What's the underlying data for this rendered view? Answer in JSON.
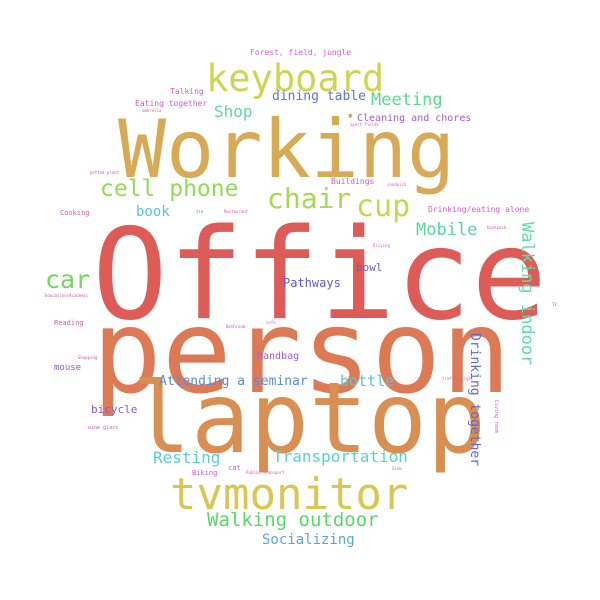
{
  "words": {
    "office": {
      "text": "Office",
      "color": "#dd5c57"
    },
    "person": {
      "text": "person",
      "color": "#dd7a55"
    },
    "laptop": {
      "text": "laptop",
      "color": "#d98f52"
    },
    "working": {
      "text": "Working",
      "color": "#d8aa55"
    },
    "keyboard": {
      "text": "keyboard",
      "color": "#cfd552"
    },
    "tvmonitor": {
      "text": "tvmonitor",
      "color": "#d8c752"
    },
    "cell_phone": {
      "text": "cell phone",
      "color": "#92dc55"
    },
    "chair": {
      "text": "chair",
      "color": "#a7d856"
    },
    "cup": {
      "text": "cup",
      "color": "#bfdb54"
    },
    "car": {
      "text": "car",
      "color": "#73d859"
    },
    "walking_outdoor": {
      "text": "Walking outdoor",
      "color": "#58d86a"
    },
    "meeting": {
      "text": "Meeting",
      "color": "#5dd98d"
    },
    "shop": {
      "text": "Shop",
      "color": "#5fd79a"
    },
    "dining_table": {
      "text": "dining table",
      "color": "#5a74d4"
    },
    "mobile": {
      "text": "Mobile",
      "color": "#58d79a"
    },
    "walking_indoor": {
      "text": "Walking indoor",
      "color": "#64dbaa"
    },
    "transportation": {
      "text": "Transportation",
      "color": "#54d6c8"
    },
    "resting": {
      "text": "Resting",
      "color": "#55d1d6"
    },
    "attending": {
      "text": "Attending a seminar",
      "color": "#5a8bd9"
    },
    "bottle": {
      "text": "bottle",
      "color": "#59c5d8"
    },
    "socializing": {
      "text": "Socializing",
      "color": "#5aa5d8"
    },
    "book": {
      "text": "book",
      "color": "#56c0d6"
    },
    "drinking_together": {
      "text": "Drinking together",
      "color": "#5b68d6"
    },
    "pathways": {
      "text": "Pathways",
      "color": "#6158d6"
    },
    "bowl": {
      "text": "bowl",
      "color": "#6c5bd6"
    },
    "bicycle": {
      "text": "bicycle",
      "color": "#8a59d6"
    },
    "handbag": {
      "text": "handbag",
      "color": "#a25bd8"
    },
    "mouse": {
      "text": "mouse",
      "color": "#8b5ad6"
    },
    "cleaning": {
      "text": "Cleaning and chores",
      "color": "#a55ad8"
    },
    "forest": {
      "text": "Forest, field, jungle",
      "color": "#d45fd6"
    },
    "talking": {
      "text": "Talking",
      "color": "#c35ad6"
    },
    "eating_together": {
      "text": "Eating together",
      "color": "#d85ac9"
    },
    "buildings": {
      "text": "Buildings",
      "color": "#c75ad8"
    },
    "drinking_alone": {
      "text": "Drinking/eating alone",
      "color": "#d85acb"
    },
    "cooking": {
      "text": "Cooking",
      "color": "#d85ab0"
    },
    "reading": {
      "text": "Reading",
      "color": "#d75a98"
    },
    "cat": {
      "text": "cat",
      "color": "#b95ad8"
    },
    "biking": {
      "text": "Biking",
      "color": "#d35ad6"
    },
    "umbrella": {
      "text": "umbrella",
      "color": "#d85aa6"
    },
    "sport_fields": {
      "text": "Sport fields",
      "color": "#d85ab3"
    },
    "potted_plant": {
      "text": "potted plant",
      "color": "#d85aa0"
    },
    "sandwich": {
      "text": "sandwich",
      "color": "#d85ac4"
    },
    "backpack": {
      "text": "backpack",
      "color": "#c35ad6"
    },
    "cup_small": {
      "text": "tie",
      "color": "#d85a8a"
    },
    "restaurant": {
      "text": "Restaurant",
      "color": "#d85ab6"
    },
    "driving": {
      "text": "Driving",
      "color": "#d85acd"
    },
    "education": {
      "text": "Education/Academic",
      "color": "#d85a9c"
    },
    "tv": {
      "text": "TV",
      "color": "#d85ab8"
    },
    "bathroom": {
      "text": "Bathroom",
      "color": "#b85ad8"
    },
    "sofa": {
      "text": "sofa",
      "color": "#d85ac6"
    },
    "shopping": {
      "text": "Shopping",
      "color": "#d85a8e"
    },
    "traffic_light": {
      "text": "traffic light",
      "color": "#d85abc"
    },
    "wine_glass": {
      "text": "wine glass",
      "color": "#d85aa8"
    },
    "living_room": {
      "text": "Living room",
      "color": "#cf5ad6"
    },
    "public_transport": {
      "text": "Public Transport",
      "color": "#d85ab4"
    },
    "sink": {
      "text": "Sink",
      "color": "#cc5ad6"
    },
    "dot": {
      "text": "·",
      "color": "#dd9a55"
    }
  }
}
